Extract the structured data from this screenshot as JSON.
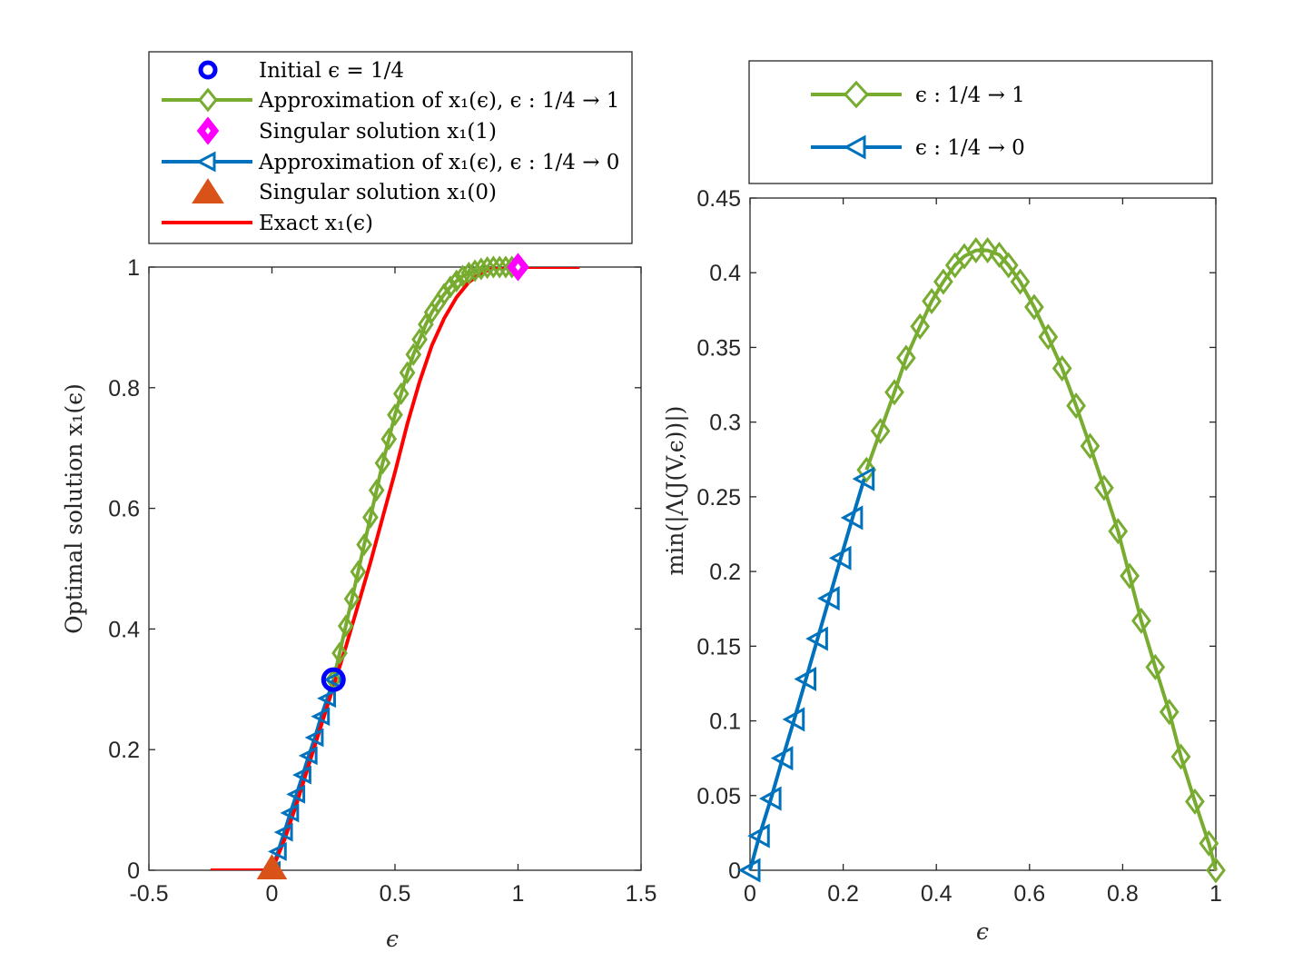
{
  "chart_data": [
    {
      "type": "line",
      "xlabel": "ϵ",
      "ylabel": "Optimal solution x₁(ϵ)",
      "xlim": [
        -0.5,
        1.5
      ],
      "ylim": [
        0,
        1
      ],
      "xticks": [
        -0.5,
        0,
        0.5,
        1,
        1.5
      ],
      "xtick_labels": [
        "-0.5",
        "0",
        "0.5",
        "1",
        "1.5"
      ],
      "yticks": [
        0,
        0.2,
        0.4,
        0.6,
        0.8,
        1
      ],
      "ytick_labels": [
        "0",
        "0.2",
        "0.4",
        "0.6",
        "0.8",
        "1"
      ],
      "grid": false,
      "legend_position": "above",
      "series": [
        {
          "name": "Initial ϵ = 1/4",
          "marker": "circle",
          "color": "#0000ff",
          "points": [
            [
              0.25,
              0.316
            ]
          ]
        },
        {
          "name": "Approximation of x₁(ϵ), ϵ : 1/4 → 1",
          "marker": "diamond",
          "color": "#77ac30",
          "points": [
            [
              0.25,
              0.316
            ],
            [
              0.275,
              0.36
            ],
            [
              0.3,
              0.405
            ],
            [
              0.325,
              0.45
            ],
            [
              0.35,
              0.495
            ],
            [
              0.375,
              0.54
            ],
            [
              0.4,
              0.585
            ],
            [
              0.425,
              0.63
            ],
            [
              0.45,
              0.675
            ],
            [
              0.475,
              0.715
            ],
            [
              0.5,
              0.755
            ],
            [
              0.525,
              0.79
            ],
            [
              0.55,
              0.825
            ],
            [
              0.575,
              0.855
            ],
            [
              0.6,
              0.88
            ],
            [
              0.625,
              0.905
            ],
            [
              0.65,
              0.925
            ],
            [
              0.675,
              0.94
            ],
            [
              0.7,
              0.955
            ],
            [
              0.725,
              0.967
            ],
            [
              0.75,
              0.977
            ],
            [
              0.775,
              0.985
            ],
            [
              0.8,
              0.99
            ],
            [
              0.825,
              0.994
            ],
            [
              0.85,
              0.997
            ],
            [
              0.875,
              0.999
            ],
            [
              0.9,
              1.0
            ],
            [
              0.925,
              1.0
            ],
            [
              0.95,
              1.0
            ],
            [
              0.975,
              1.0
            ],
            [
              1.0,
              1.0
            ]
          ]
        },
        {
          "name": "Singular solution x₁(1)",
          "marker": "diamond",
          "color": "#ff00ff",
          "points": [
            [
              1.0,
              1.0
            ]
          ]
        },
        {
          "name": "Approximation of x₁(ϵ), ϵ : 1/4 → 0",
          "marker": "triangle-left",
          "color": "#0072bd",
          "points": [
            [
              0.25,
              0.316
            ],
            [
              0.225,
              0.285
            ],
            [
              0.2,
              0.255
            ],
            [
              0.175,
              0.22
            ],
            [
              0.15,
              0.19
            ],
            [
              0.125,
              0.158
            ],
            [
              0.1,
              0.126
            ],
            [
              0.075,
              0.095
            ],
            [
              0.05,
              0.063
            ],
            [
              0.025,
              0.031
            ],
            [
              0.0,
              0.0
            ]
          ]
        },
        {
          "name": "Singular solution x₁(0)",
          "marker": "triangle-up",
          "color": "#d95319",
          "points": [
            [
              0.0,
              0.0
            ]
          ]
        },
        {
          "name": "Exact x₁(ϵ)",
          "marker": "none",
          "color": "#ff0000",
          "points": [
            [
              -0.25,
              0
            ],
            [
              0.0,
              0
            ],
            [
              0.05,
              0.05
            ],
            [
              0.1,
              0.11
            ],
            [
              0.15,
              0.175
            ],
            [
              0.2,
              0.24
            ],
            [
              0.25,
              0.305
            ],
            [
              0.3,
              0.37
            ],
            [
              0.35,
              0.44
            ],
            [
              0.4,
              0.51
            ],
            [
              0.45,
              0.585
            ],
            [
              0.5,
              0.66
            ],
            [
              0.55,
              0.74
            ],
            [
              0.6,
              0.81
            ],
            [
              0.65,
              0.87
            ],
            [
              0.7,
              0.915
            ],
            [
              0.75,
              0.95
            ],
            [
              0.8,
              0.975
            ],
            [
              0.85,
              0.99
            ],
            [
              0.9,
              0.998
            ],
            [
              0.95,
              1.0
            ],
            [
              1.0,
              1.0
            ],
            [
              1.25,
              1.0
            ]
          ]
        }
      ]
    },
    {
      "type": "line",
      "xlabel": "ϵ",
      "ylabel": "min(|Λ(J(V,ϵ))|)",
      "xlim": [
        0,
        1
      ],
      "ylim": [
        0,
        0.45
      ],
      "xticks": [
        0,
        0.2,
        0.4,
        0.6,
        0.8,
        1
      ],
      "xtick_labels": [
        "0",
        "0.2",
        "0.4",
        "0.6",
        "0.8",
        "1"
      ],
      "yticks": [
        0,
        0.05,
        0.1,
        0.15,
        0.2,
        0.25,
        0.3,
        0.35,
        0.4,
        0.45
      ],
      "ytick_labels": [
        "0",
        "0.05",
        "0.1",
        "0.15",
        "0.2",
        "0.25",
        "0.3",
        "0.35",
        "0.4",
        "0.45"
      ],
      "grid": false,
      "legend_position": "above",
      "series": [
        {
          "name": "ϵ : 1/4 → 1",
          "marker": "diamond",
          "color": "#77ac30",
          "points": [
            [
              0.25,
              0.268
            ],
            [
              0.28,
              0.294
            ],
            [
              0.31,
              0.32
            ],
            [
              0.335,
              0.343
            ],
            [
              0.365,
              0.364
            ],
            [
              0.39,
              0.381
            ],
            [
              0.415,
              0.394
            ],
            [
              0.44,
              0.405
            ],
            [
              0.46,
              0.411
            ],
            [
              0.485,
              0.415
            ],
            [
              0.51,
              0.415
            ],
            [
              0.535,
              0.412
            ],
            [
              0.555,
              0.405
            ],
            [
              0.58,
              0.394
            ],
            [
              0.61,
              0.377
            ],
            [
              0.64,
              0.357
            ],
            [
              0.67,
              0.336
            ],
            [
              0.7,
              0.311
            ],
            [
              0.73,
              0.284
            ],
            [
              0.76,
              0.256
            ],
            [
              0.79,
              0.227
            ],
            [
              0.815,
              0.197
            ],
            [
              0.84,
              0.167
            ],
            [
              0.87,
              0.136
            ],
            [
              0.9,
              0.106
            ],
            [
              0.925,
              0.076
            ],
            [
              0.955,
              0.046
            ],
            [
              0.985,
              0.018
            ],
            [
              1.0,
              0.0
            ]
          ]
        },
        {
          "name": "ϵ : 1/4 → 0",
          "marker": "triangle-left",
          "color": "#0072bd",
          "points": [
            [
              0.0,
              0.0
            ],
            [
              0.02,
              0.023
            ],
            [
              0.045,
              0.048
            ],
            [
              0.07,
              0.075
            ],
            [
              0.095,
              0.101
            ],
            [
              0.12,
              0.128
            ],
            [
              0.145,
              0.155
            ],
            [
              0.17,
              0.182
            ],
            [
              0.195,
              0.209
            ],
            [
              0.22,
              0.236
            ],
            [
              0.245,
              0.262
            ]
          ]
        }
      ]
    }
  ]
}
